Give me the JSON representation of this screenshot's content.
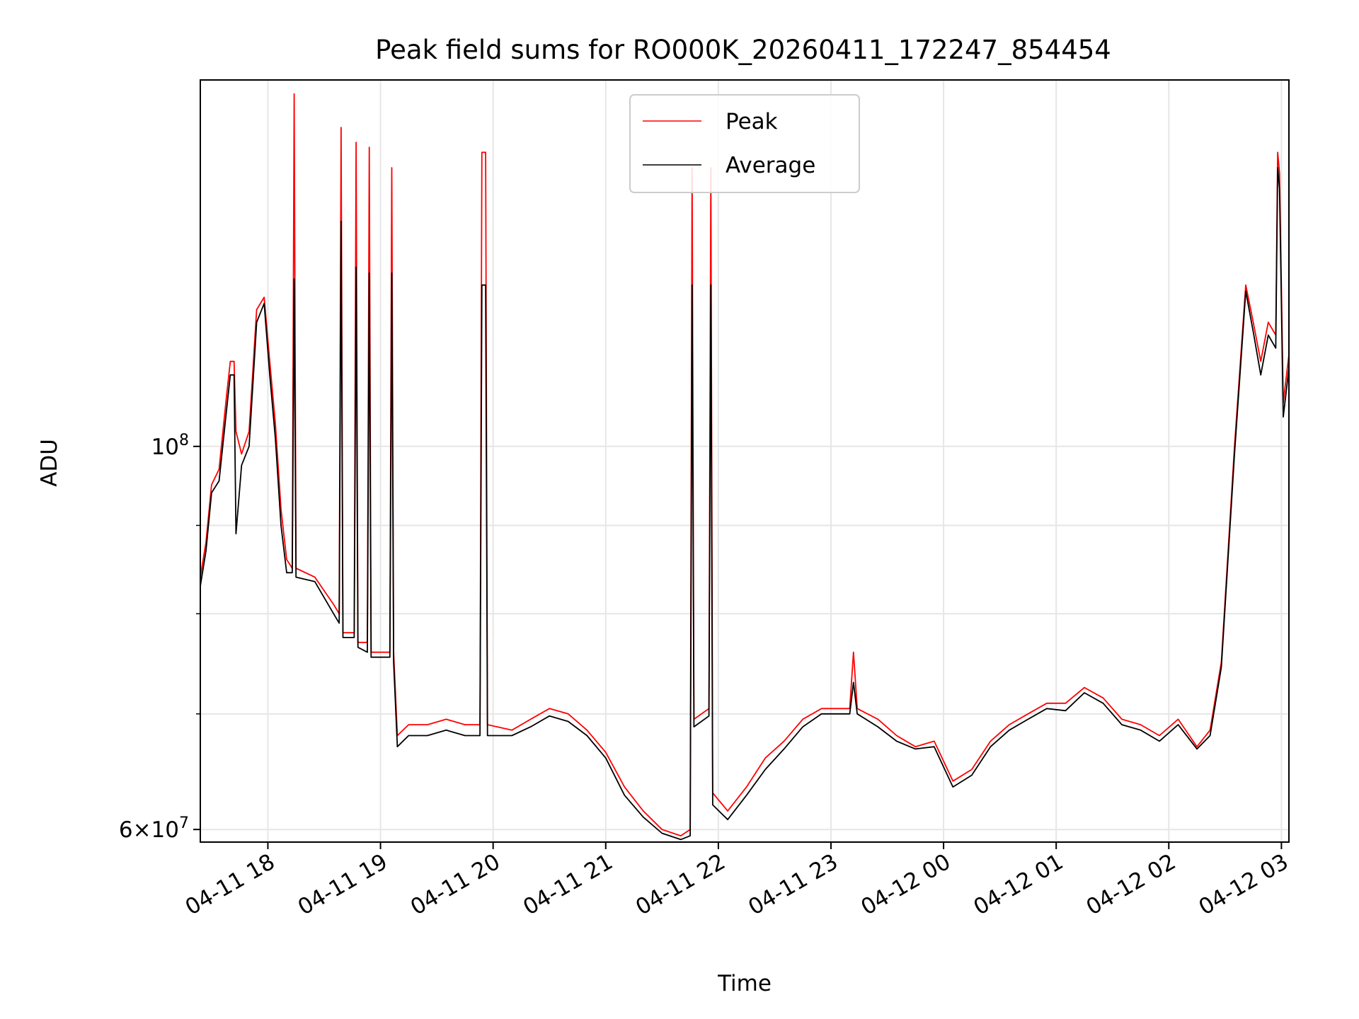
{
  "chart_data": {
    "type": "line",
    "title": "Peak field sums for RO000K_20260411_172247_854454",
    "xlabel": "Time",
    "ylabel": "ADU",
    "x_ticks": [
      "04-11 18",
      "04-11 19",
      "04-11 20",
      "04-11 21",
      "04-11 22",
      "04-11 23",
      "04-12 00",
      "04-12 01",
      "04-12 02",
      "04-12 03"
    ],
    "x_tick_hours": [
      18,
      19,
      20,
      21,
      22,
      23,
      24,
      25,
      26,
      27
    ],
    "y_scale": "log",
    "y_major_ticks": [
      {
        "value": 60000000,
        "base": "6",
        "mult": "×",
        "exp_base": "10",
        "exp": "7"
      },
      {
        "value": 100000000,
        "base": "",
        "mult": "",
        "exp_base": "10",
        "exp": "8"
      }
    ],
    "y_minor_gridlines": [
      70000000,
      80000000,
      90000000
    ],
    "xlim": [
      "04-11 17:24",
      "04-12 03:04"
    ],
    "ylim": [
      59000000,
      163000000
    ],
    "grid": true,
    "legend_position": "upper center",
    "colors": {
      "peak": "#ff0000",
      "average": "#000000",
      "grid": "#e6e6e6"
    },
    "series": [
      {
        "name": "Peak",
        "color": "#ff0000",
        "points": [
          [
            "04-11 17:24",
            84000000
          ],
          [
            "04-11 17:27",
            88000000
          ],
          [
            "04-11 17:30",
            95000000
          ],
          [
            "04-11 17:34",
            97000000
          ],
          [
            "04-11 17:38",
            107000000
          ],
          [
            "04-11 17:40",
            112000000
          ],
          [
            "04-11 17:42",
            112000000
          ],
          [
            "04-11 17:43",
            102000000
          ],
          [
            "04-11 17:46",
            99000000
          ],
          [
            "04-11 17:50",
            102000000
          ],
          [
            "04-11 17:54",
            120000000
          ],
          [
            "04-11 17:58",
            122000000
          ],
          [
            "04-11 18:01",
            112000000
          ],
          [
            "04-11 18:04",
            103000000
          ],
          [
            "04-11 18:07",
            92000000
          ],
          [
            "04-11 18:10",
            86000000
          ],
          [
            "04-11 18:13",
            85000000
          ],
          [
            "04-11 18:14",
            160000000
          ],
          [
            "04-11 18:15",
            85000000
          ],
          [
            "04-11 18:25",
            84000000
          ],
          [
            "04-11 18:35",
            81000000
          ],
          [
            "04-11 18:38",
            80000000
          ],
          [
            "04-11 18:39",
            153000000
          ],
          [
            "04-11 18:40",
            78000000
          ],
          [
            "04-11 18:46",
            78000000
          ],
          [
            "04-11 18:47",
            150000000
          ],
          [
            "04-11 18:48",
            77000000
          ],
          [
            "04-11 18:53",
            77000000
          ],
          [
            "04-11 18:54",
            149000000
          ],
          [
            "04-11 18:55",
            76000000
          ],
          [
            "04-11 19:05",
            76000000
          ],
          [
            "04-11 19:06",
            145000000
          ],
          [
            "04-11 19:07",
            76000000
          ],
          [
            "04-11 19:09",
            68000000
          ],
          [
            "04-11 19:15",
            69000000
          ],
          [
            "04-11 19:25",
            69000000
          ],
          [
            "04-11 19:35",
            69500000
          ],
          [
            "04-11 19:45",
            69000000
          ],
          [
            "04-11 19:53",
            69000000
          ],
          [
            "04-11 19:54",
            148000000
          ],
          [
            "04-11 19:56",
            148000000
          ],
          [
            "04-11 19:57",
            69000000
          ],
          [
            "04-11 20:10",
            68500000
          ],
          [
            "04-11 20:20",
            69500000
          ],
          [
            "04-11 20:30",
            70500000
          ],
          [
            "04-11 20:40",
            70000000
          ],
          [
            "04-11 20:50",
            68500000
          ],
          [
            "04-11 21:00",
            66500000
          ],
          [
            "04-11 21:10",
            63500000
          ],
          [
            "04-11 21:20",
            61500000
          ],
          [
            "04-11 21:30",
            60000000
          ],
          [
            "04-11 21:40",
            59500000
          ],
          [
            "04-11 21:45",
            60000000
          ],
          [
            "04-11 21:46",
            145000000
          ],
          [
            "04-11 21:47",
            69500000
          ],
          [
            "04-11 21:55",
            70500000
          ],
          [
            "04-11 21:56",
            145000000
          ],
          [
            "04-11 21:57",
            63000000
          ],
          [
            "04-11 22:05",
            61500000
          ],
          [
            "04-11 22:15",
            63500000
          ],
          [
            "04-11 22:25",
            66000000
          ],
          [
            "04-11 22:35",
            67500000
          ],
          [
            "04-11 22:45",
            69500000
          ],
          [
            "04-11 22:55",
            70500000
          ],
          [
            "04-11 23:05",
            70500000
          ],
          [
            "04-11 23:10",
            70500000
          ],
          [
            "04-11 23:12",
            76000000
          ],
          [
            "04-11 23:14",
            70500000
          ],
          [
            "04-11 23:25",
            69500000
          ],
          [
            "04-11 23:35",
            68000000
          ],
          [
            "04-11 23:45",
            67000000
          ],
          [
            "04-11 23:55",
            67500000
          ],
          [
            "04-12 00:05",
            64000000
          ],
          [
            "04-12 00:15",
            65000000
          ],
          [
            "04-12 00:25",
            67500000
          ],
          [
            "04-12 00:35",
            69000000
          ],
          [
            "04-12 00:45",
            70000000
          ],
          [
            "04-12 00:55",
            71000000
          ],
          [
            "04-12 01:05",
            71000000
          ],
          [
            "04-12 01:15",
            72500000
          ],
          [
            "04-12 01:25",
            71500000
          ],
          [
            "04-12 01:35",
            69500000
          ],
          [
            "04-12 01:45",
            69000000
          ],
          [
            "04-12 01:55",
            68000000
          ],
          [
            "04-12 02:05",
            69500000
          ],
          [
            "04-12 02:15",
            67000000
          ],
          [
            "04-12 02:22",
            68500000
          ],
          [
            "04-12 02:28",
            75000000
          ],
          [
            "04-12 02:35",
            100000000
          ],
          [
            "04-12 02:41",
            124000000
          ],
          [
            "04-12 02:45",
            118000000
          ],
          [
            "04-12 02:49",
            112000000
          ],
          [
            "04-12 02:53",
            118000000
          ],
          [
            "04-12 02:57",
            116000000
          ],
          [
            "04-12 02:58",
            148000000
          ],
          [
            "04-12 02:59",
            144000000
          ],
          [
            "04-12 03:01",
            106000000
          ],
          [
            "04-12 03:04",
            113000000
          ]
        ]
      },
      {
        "name": "Average",
        "color": "#000000",
        "points": [
          [
            "04-11 17:24",
            83000000
          ],
          [
            "04-11 17:27",
            87000000
          ],
          [
            "04-11 17:30",
            94000000
          ],
          [
            "04-11 17:34",
            95500000
          ],
          [
            "04-11 17:38",
            105000000
          ],
          [
            "04-11 17:40",
            110000000
          ],
          [
            "04-11 17:42",
            110000000
          ],
          [
            "04-11 17:43",
            89000000
          ],
          [
            "04-11 17:46",
            97500000
          ],
          [
            "04-11 17:50",
            100000000
          ],
          [
            "04-11 17:54",
            118000000
          ],
          [
            "04-11 17:58",
            121000000
          ],
          [
            "04-11 18:01",
            110000000
          ],
          [
            "04-11 18:04",
            101000000
          ],
          [
            "04-11 18:07",
            90000000
          ],
          [
            "04-11 18:10",
            84500000
          ],
          [
            "04-11 18:13",
            84500000
          ],
          [
            "04-11 18:14",
            125000000
          ],
          [
            "04-11 18:15",
            84000000
          ],
          [
            "04-11 18:25",
            83500000
          ],
          [
            "04-11 18:35",
            80000000
          ],
          [
            "04-11 18:38",
            79000000
          ],
          [
            "04-11 18:39",
            135000000
          ],
          [
            "04-11 18:40",
            77500000
          ],
          [
            "04-11 18:46",
            77500000
          ],
          [
            "04-11 18:47",
            127000000
          ],
          [
            "04-11 18:48",
            76500000
          ],
          [
            "04-11 18:53",
            76000000
          ],
          [
            "04-11 18:54",
            126000000
          ],
          [
            "04-11 18:55",
            75500000
          ],
          [
            "04-11 19:05",
            75500000
          ],
          [
            "04-11 19:06",
            126000000
          ],
          [
            "04-11 19:07",
            75000000
          ],
          [
            "04-11 19:09",
            67000000
          ],
          [
            "04-11 19:15",
            68000000
          ],
          [
            "04-11 19:25",
            68000000
          ],
          [
            "04-11 19:35",
            68500000
          ],
          [
            "04-11 19:45",
            68000000
          ],
          [
            "04-11 19:53",
            68000000
          ],
          [
            "04-11 19:54",
            124000000
          ],
          [
            "04-11 19:56",
            124000000
          ],
          [
            "04-11 19:57",
            68000000
          ],
          [
            "04-11 20:10",
            68000000
          ],
          [
            "04-11 20:20",
            68800000
          ],
          [
            "04-11 20:30",
            69800000
          ],
          [
            "04-11 20:40",
            69300000
          ],
          [
            "04-11 20:50",
            68000000
          ],
          [
            "04-11 21:00",
            66000000
          ],
          [
            "04-11 21:10",
            62800000
          ],
          [
            "04-11 21:20",
            61000000
          ],
          [
            "04-11 21:30",
            59700000
          ],
          [
            "04-11 21:40",
            59200000
          ],
          [
            "04-11 21:45",
            59500000
          ],
          [
            "04-11 21:46",
            124000000
          ],
          [
            "04-11 21:47",
            68800000
          ],
          [
            "04-11 21:55",
            69800000
          ],
          [
            "04-11 21:56",
            124000000
          ],
          [
            "04-11 21:57",
            62000000
          ],
          [
            "04-11 22:05",
            60800000
          ],
          [
            "04-11 22:15",
            62800000
          ],
          [
            "04-11 22:25",
            65000000
          ],
          [
            "04-11 22:35",
            66800000
          ],
          [
            "04-11 22:45",
            68800000
          ],
          [
            "04-11 22:55",
            70000000
          ],
          [
            "04-11 23:05",
            70000000
          ],
          [
            "04-11 23:10",
            70000000
          ],
          [
            "04-11 23:12",
            73000000
          ],
          [
            "04-11 23:14",
            70000000
          ],
          [
            "04-11 23:25",
            68800000
          ],
          [
            "04-11 23:35",
            67500000
          ],
          [
            "04-11 23:45",
            66800000
          ],
          [
            "04-11 23:55",
            67000000
          ],
          [
            "04-12 00:05",
            63500000
          ],
          [
            "04-12 00:15",
            64500000
          ],
          [
            "04-12 00:25",
            67000000
          ],
          [
            "04-12 00:35",
            68500000
          ],
          [
            "04-12 00:45",
            69500000
          ],
          [
            "04-12 00:55",
            70500000
          ],
          [
            "04-12 01:05",
            70300000
          ],
          [
            "04-12 01:15",
            72000000
          ],
          [
            "04-12 01:25",
            71000000
          ],
          [
            "04-12 01:35",
            69000000
          ],
          [
            "04-12 01:45",
            68500000
          ],
          [
            "04-12 01:55",
            67500000
          ],
          [
            "04-12 02:05",
            69000000
          ],
          [
            "04-12 02:15",
            66800000
          ],
          [
            "04-12 02:22",
            68000000
          ],
          [
            "04-12 02:28",
            74500000
          ],
          [
            "04-12 02:35",
            99000000
          ],
          [
            "04-12 02:41",
            123000000
          ],
          [
            "04-12 02:45",
            116500000
          ],
          [
            "04-12 02:49",
            110000000
          ],
          [
            "04-12 02:53",
            116000000
          ],
          [
            "04-12 02:57",
            114000000
          ],
          [
            "04-12 02:58",
            145000000
          ],
          [
            "04-12 02:59",
            141000000
          ],
          [
            "04-12 03:01",
            104000000
          ],
          [
            "04-12 03:04",
            111000000
          ]
        ]
      }
    ]
  }
}
